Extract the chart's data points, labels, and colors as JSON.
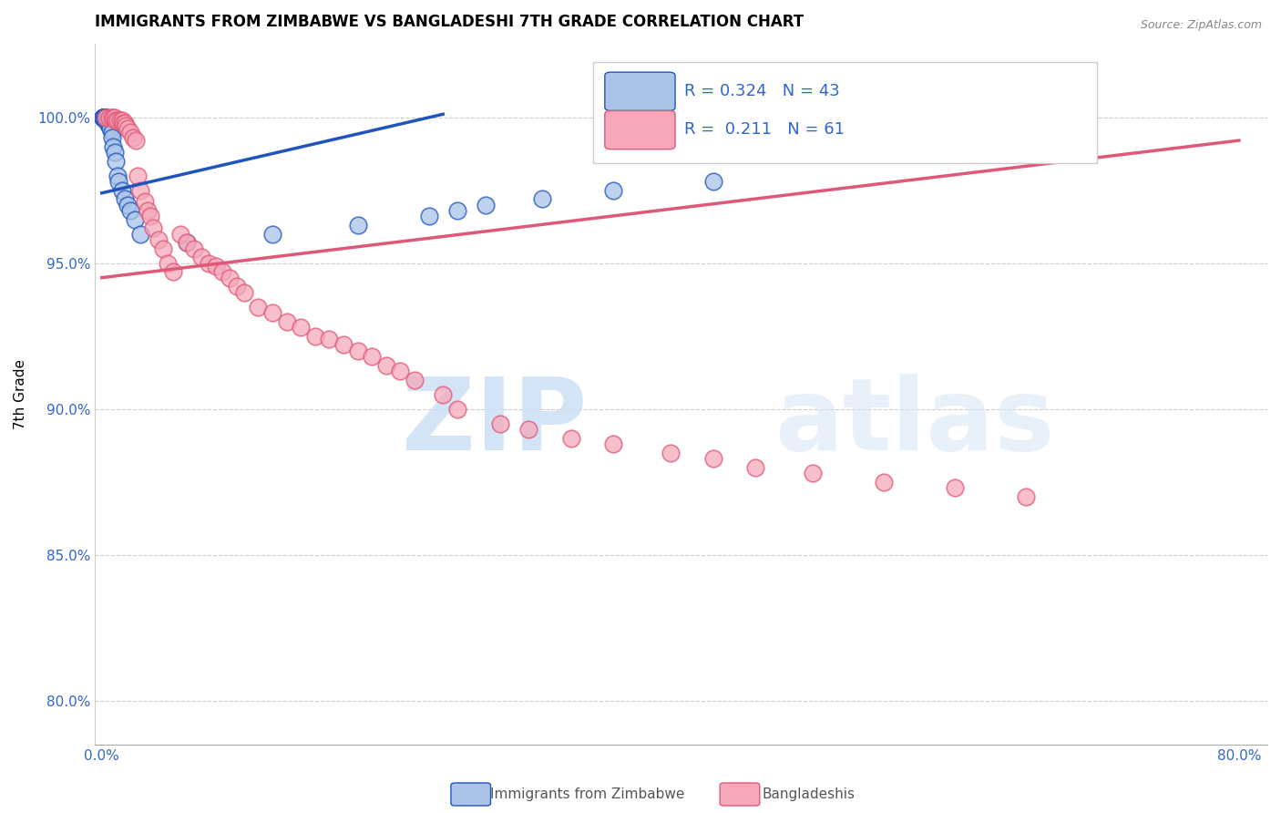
{
  "title": "IMMIGRANTS FROM ZIMBABWE VS BANGLADESHI 7TH GRADE CORRELATION CHART",
  "source": "Source: ZipAtlas.com",
  "ylabel": "7th Grade",
  "x_ticks": [
    0.0,
    0.1,
    0.2,
    0.3,
    0.4,
    0.5,
    0.6,
    0.7,
    0.8
  ],
  "x_tick_labels": [
    "0.0%",
    "",
    "",
    "",
    "",
    "",
    "",
    "",
    "80.0%"
  ],
  "y_ticks": [
    0.8,
    0.85,
    0.9,
    0.95,
    1.0
  ],
  "y_tick_labels": [
    "80.0%",
    "85.0%",
    "90.0%",
    "95.0%",
    "100.0%"
  ],
  "xlim": [
    -0.005,
    0.82
  ],
  "ylim": [
    0.785,
    1.025
  ],
  "blue_R": 0.324,
  "blue_N": 43,
  "pink_R": 0.211,
  "pink_N": 61,
  "blue_color": "#aac4e8",
  "pink_color": "#f5a8ba",
  "blue_line_color": "#2255bb",
  "pink_line_color": "#e05878",
  "blue_line_x0": 0.0,
  "blue_line_y0": 0.974,
  "blue_line_x1": 0.24,
  "blue_line_y1": 1.001,
  "pink_line_x0": 0.0,
  "pink_line_y0": 0.945,
  "pink_line_x1": 0.8,
  "pink_line_y1": 0.992,
  "blue_x": [
    0.001,
    0.001,
    0.001,
    0.001,
    0.001,
    0.002,
    0.002,
    0.002,
    0.002,
    0.002,
    0.003,
    0.003,
    0.003,
    0.003,
    0.004,
    0.004,
    0.004,
    0.005,
    0.005,
    0.006,
    0.006,
    0.007,
    0.007,
    0.008,
    0.009,
    0.01,
    0.011,
    0.012,
    0.014,
    0.016,
    0.018,
    0.02,
    0.023,
    0.027,
    0.06,
    0.12,
    0.18,
    0.23,
    0.25,
    0.27,
    0.31,
    0.36,
    0.43
  ],
  "blue_y": [
    1.0,
    1.0,
    1.0,
    1.0,
    1.0,
    1.0,
    1.0,
    1.0,
    1.0,
    1.0,
    1.0,
    1.0,
    1.0,
    0.999,
    0.999,
    0.999,
    0.998,
    0.998,
    0.997,
    0.997,
    0.996,
    0.995,
    0.993,
    0.99,
    0.988,
    0.985,
    0.98,
    0.978,
    0.975,
    0.972,
    0.97,
    0.968,
    0.965,
    0.96,
    0.957,
    0.96,
    0.963,
    0.966,
    0.968,
    0.97,
    0.972,
    0.975,
    0.978
  ],
  "pink_x": [
    0.003,
    0.005,
    0.007,
    0.008,
    0.009,
    0.01,
    0.011,
    0.013,
    0.014,
    0.015,
    0.016,
    0.017,
    0.018,
    0.02,
    0.022,
    0.024,
    0.025,
    0.027,
    0.03,
    0.032,
    0.034,
    0.036,
    0.04,
    0.043,
    0.046,
    0.05,
    0.055,
    0.06,
    0.065,
    0.07,
    0.075,
    0.08,
    0.085,
    0.09,
    0.095,
    0.1,
    0.11,
    0.12,
    0.13,
    0.14,
    0.15,
    0.16,
    0.17,
    0.18,
    0.19,
    0.2,
    0.21,
    0.22,
    0.24,
    0.25,
    0.28,
    0.3,
    0.33,
    0.36,
    0.4,
    0.43,
    0.46,
    0.5,
    0.55,
    0.6,
    0.65
  ],
  "pink_y": [
    1.0,
    1.0,
    1.0,
    1.0,
    1.0,
    0.999,
    0.999,
    0.999,
    0.999,
    0.998,
    0.998,
    0.997,
    0.996,
    0.995,
    0.993,
    0.992,
    0.98,
    0.975,
    0.971,
    0.968,
    0.966,
    0.962,
    0.958,
    0.955,
    0.95,
    0.947,
    0.96,
    0.957,
    0.955,
    0.952,
    0.95,
    0.949,
    0.947,
    0.945,
    0.942,
    0.94,
    0.935,
    0.933,
    0.93,
    0.928,
    0.925,
    0.924,
    0.922,
    0.92,
    0.918,
    0.915,
    0.913,
    0.91,
    0.905,
    0.9,
    0.895,
    0.893,
    0.89,
    0.888,
    0.885,
    0.883,
    0.88,
    0.878,
    0.875,
    0.873,
    0.87
  ]
}
